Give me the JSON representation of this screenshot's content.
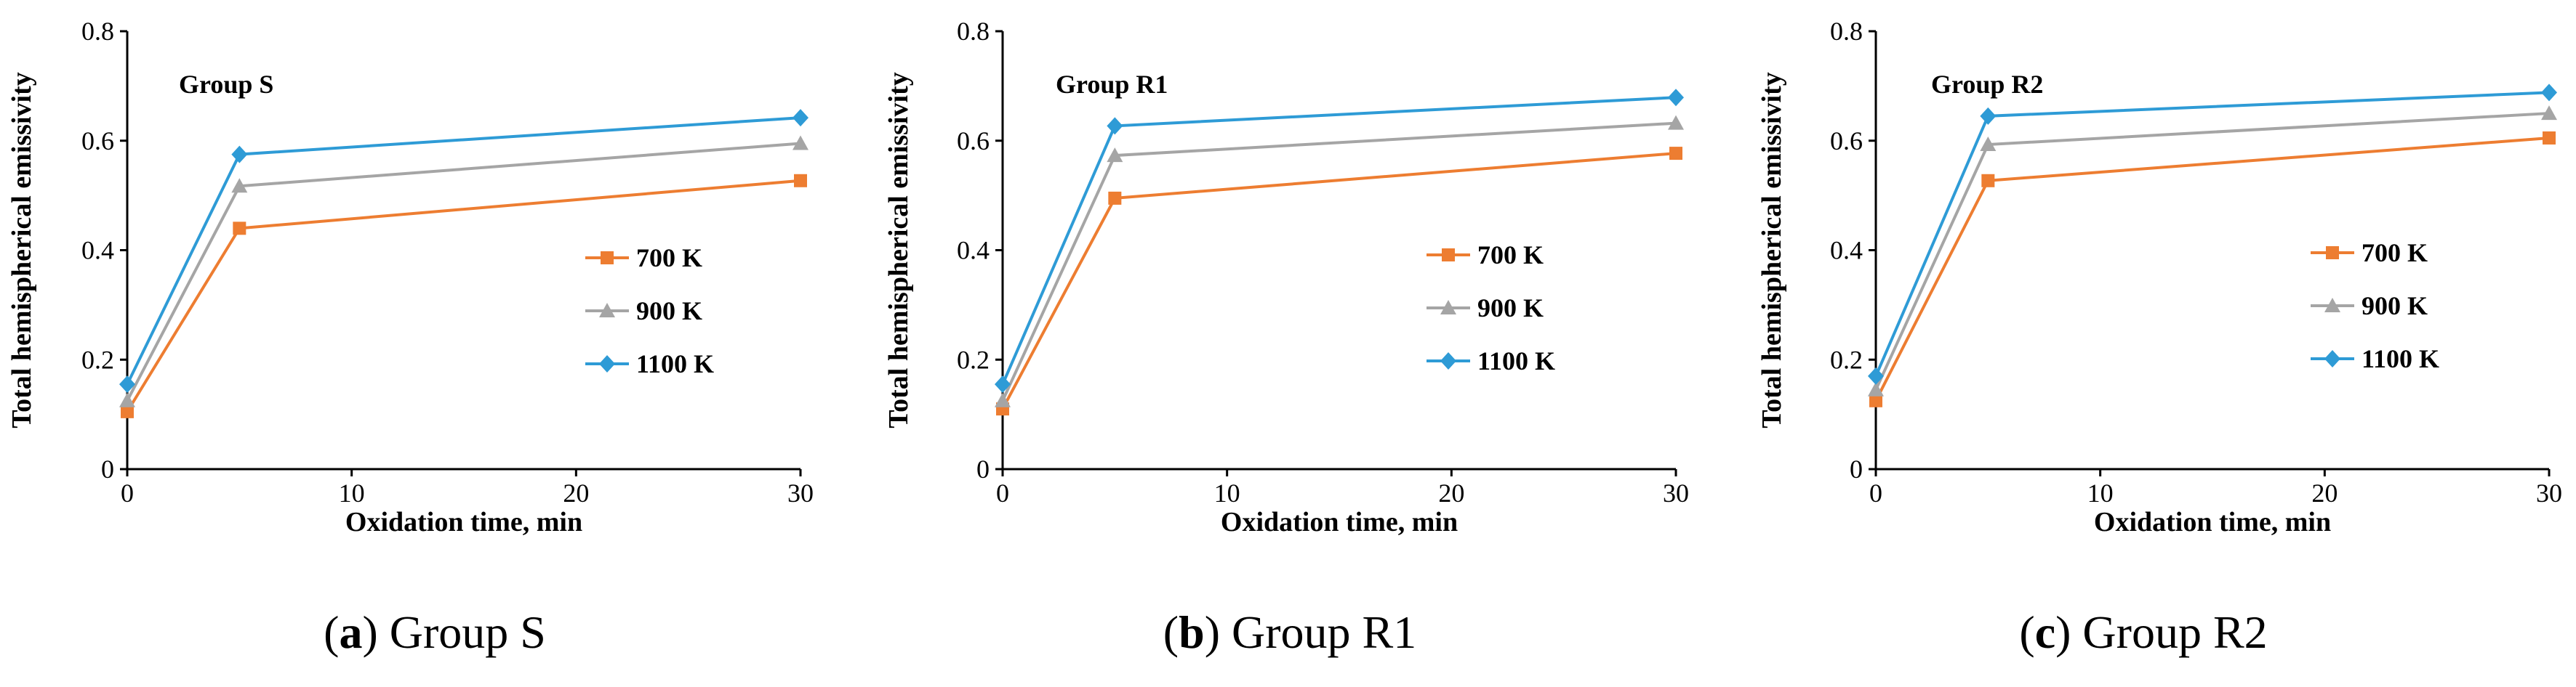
{
  "figure": {
    "captions": [
      {
        "prefix": "(",
        "letter": "a",
        "suffix": ") ",
        "text": "Group S"
      },
      {
        "prefix": "(",
        "letter": "b",
        "suffix": ") ",
        "text": "Group R1"
      },
      {
        "prefix": "(",
        "letter": "c",
        "suffix": ") ",
        "text": "Group R2"
      }
    ]
  },
  "chart_data": [
    {
      "type": "line",
      "title": "Group S",
      "xlabel": "Oxidation time, min",
      "ylabel": "Total hemispherical emissivity",
      "xlim": [
        0,
        30
      ],
      "ylim": [
        0,
        0.8
      ],
      "xticks": [
        0,
        10,
        20,
        30
      ],
      "xtick_labels": [
        "0",
        "10",
        "20",
        "30"
      ],
      "yticks": [
        0,
        0.2,
        0.4,
        0.6,
        0.8
      ],
      "ytick_labels": [
        "0",
        "0.2",
        "0.4",
        "0.6",
        "0.8"
      ],
      "grid": false,
      "legend_position": "right",
      "x": [
        0,
        5,
        30
      ],
      "series": [
        {
          "name": "700 K",
          "color": "#ED7D31",
          "marker": "square",
          "values": [
            0.105,
            0.44,
            0.527
          ]
        },
        {
          "name": "900 K",
          "color": "#A5A5A5",
          "marker": "triangle",
          "values": [
            0.125,
            0.517,
            0.595
          ]
        },
        {
          "name": "1100 K",
          "color": "#2E9BD6",
          "marker": "diamond",
          "values": [
            0.155,
            0.575,
            0.642
          ]
        }
      ]
    },
    {
      "type": "line",
      "title": "Group R1",
      "xlabel": "Oxidation time, min",
      "ylabel": "Total hemispherical emissivity",
      "xlim": [
        0,
        30
      ],
      "ylim": [
        0,
        0.8
      ],
      "xticks": [
        0,
        10,
        20,
        30
      ],
      "xtick_labels": [
        "0",
        "10",
        "20",
        "30"
      ],
      "yticks": [
        0,
        0.2,
        0.4,
        0.6,
        0.8
      ],
      "ytick_labels": [
        "0",
        "0.2",
        "0.4",
        "0.6",
        "0.8"
      ],
      "grid": false,
      "legend_position": "right",
      "x": [
        0,
        5,
        30
      ],
      "series": [
        {
          "name": "700 K",
          "color": "#ED7D31",
          "marker": "square",
          "values": [
            0.11,
            0.495,
            0.577
          ]
        },
        {
          "name": "900 K",
          "color": "#A5A5A5",
          "marker": "triangle",
          "values": [
            0.125,
            0.573,
            0.632
          ]
        },
        {
          "name": "1100 K",
          "color": "#2E9BD6",
          "marker": "diamond",
          "values": [
            0.155,
            0.627,
            0.679
          ]
        }
      ]
    },
    {
      "type": "line",
      "title": "Group R2",
      "xlabel": "Oxidation time, min",
      "ylabel": "Total hemispherical emissivity",
      "xlim": [
        0,
        30
      ],
      "ylim": [
        0,
        0.8
      ],
      "xticks": [
        0,
        10,
        20,
        30
      ],
      "xtick_labels": [
        "0",
        "10",
        "20",
        "30"
      ],
      "yticks": [
        0,
        0.2,
        0.4,
        0.6,
        0.8
      ],
      "ytick_labels": [
        "0",
        "0.2",
        "0.4",
        "0.6",
        "0.8"
      ],
      "grid": false,
      "legend_position": "right",
      "x": [
        0,
        5,
        30
      ],
      "series": [
        {
          "name": "700 K",
          "color": "#ED7D31",
          "marker": "square",
          "values": [
            0.125,
            0.527,
            0.605
          ]
        },
        {
          "name": "900 K",
          "color": "#A5A5A5",
          "marker": "triangle",
          "values": [
            0.145,
            0.593,
            0.65
          ]
        },
        {
          "name": "1100 K",
          "color": "#2E9BD6",
          "marker": "diamond",
          "values": [
            0.17,
            0.645,
            0.688
          ]
        }
      ]
    }
  ]
}
